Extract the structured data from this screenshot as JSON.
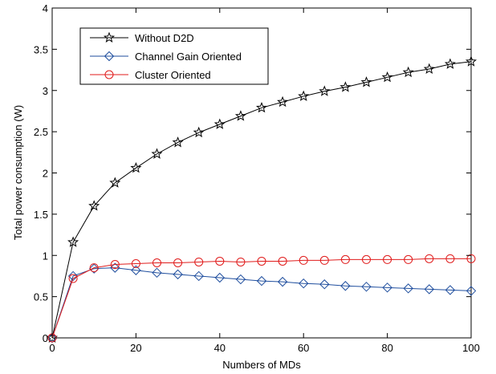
{
  "chart_data": {
    "type": "line",
    "xlabel": "Numbers of MDs",
    "ylabel": "Total power consumption (W)",
    "xlim": [
      0,
      100
    ],
    "ylim": [
      0,
      4
    ],
    "xticks": [
      0,
      20,
      40,
      60,
      80,
      100
    ],
    "yticks": [
      0,
      0.5,
      1,
      1.5,
      2,
      2.5,
      3,
      3.5,
      4
    ],
    "ytick_labels": [
      "0",
      "0.5",
      "1",
      "1.5",
      "2",
      "2.5",
      "3",
      "3.5",
      "4"
    ],
    "grid": false,
    "legend_position": "top-left",
    "x": [
      0,
      5,
      10,
      15,
      20,
      25,
      30,
      35,
      40,
      45,
      50,
      55,
      60,
      65,
      70,
      75,
      80,
      85,
      90,
      95,
      100
    ],
    "series": [
      {
        "name": "Without D2D",
        "color": "#000000",
        "marker": "star",
        "values": [
          0,
          1.16,
          1.6,
          1.88,
          2.06,
          2.23,
          2.37,
          2.49,
          2.59,
          2.69,
          2.79,
          2.86,
          2.93,
          2.99,
          3.04,
          3.1,
          3.16,
          3.22,
          3.26,
          3.32,
          3.35
        ]
      },
      {
        "name": "Channel Gain Oriented",
        "color": "#1f4e9e",
        "marker": "diamond",
        "values": [
          0,
          0.75,
          0.84,
          0.85,
          0.82,
          0.79,
          0.77,
          0.75,
          0.73,
          0.71,
          0.69,
          0.68,
          0.66,
          0.65,
          0.63,
          0.62,
          0.61,
          0.6,
          0.59,
          0.58,
          0.57
        ]
      },
      {
        "name": "Cluster Oriented",
        "color": "#e01b1b",
        "marker": "circle",
        "values": [
          0,
          0.72,
          0.85,
          0.89,
          0.9,
          0.91,
          0.91,
          0.92,
          0.93,
          0.92,
          0.93,
          0.93,
          0.94,
          0.94,
          0.95,
          0.95,
          0.95,
          0.95,
          0.96,
          0.96,
          0.96
        ]
      }
    ]
  }
}
